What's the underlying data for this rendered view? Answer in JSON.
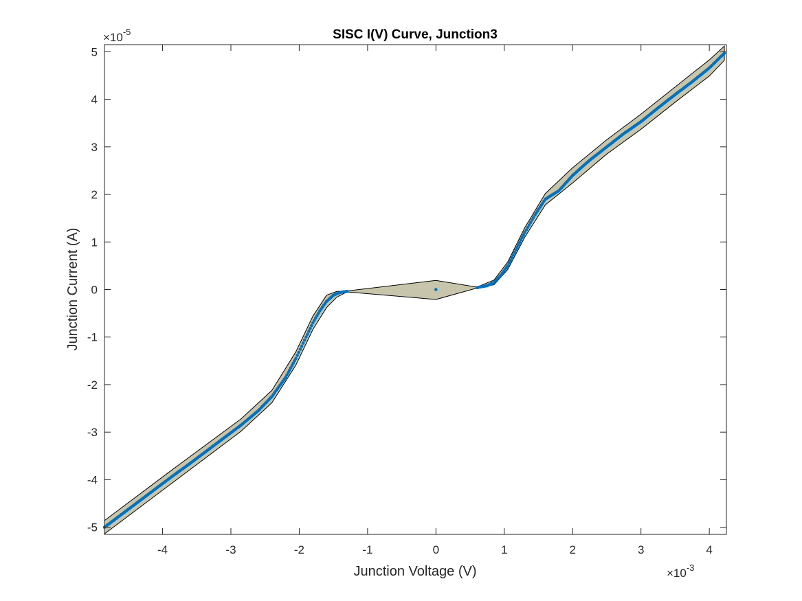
{
  "chart_data": {
    "type": "scatter",
    "title": "SISC I(V) Curve, Junction3",
    "xlabel": "Junction Voltage (V)",
    "ylabel": "Junction Current (A)",
    "x_multiplier": "×10",
    "x_exponent": "-3",
    "y_multiplier": "×10",
    "y_exponent": "-5",
    "xlim": [
      -4.85,
      4.25
    ],
    "ylim": [
      -5.15,
      5.15
    ],
    "xticks": [
      -4,
      -3,
      -2,
      -1,
      0,
      1,
      2,
      3,
      4
    ],
    "xtick_labels": [
      "-4",
      "-3",
      "-2",
      "-1",
      "0",
      "1",
      "2",
      "3",
      "4"
    ],
    "yticks": [
      -5,
      -4,
      -3,
      -2,
      -1,
      0,
      1,
      2,
      3,
      4,
      5
    ],
    "ytick_labels": [
      "-5",
      "-4",
      "-3",
      "-2",
      "-1",
      "0",
      "1",
      "2",
      "3",
      "4",
      "5"
    ],
    "grid": false,
    "colors": {
      "points": "#0072bd",
      "band_fill": "#c8c5ad",
      "band_stroke": "#000000",
      "axes": "#262626"
    },
    "series": [
      {
        "x": [
          -4.85,
          -4.6,
          -4.35,
          -4.1,
          -3.85,
          -3.6,
          -3.35,
          -3.1,
          -2.85,
          -2.6,
          -2.4,
          -2.2,
          -2.05,
          -1.9,
          -1.8,
          -1.7,
          -1.6,
          -1.5,
          -1.4,
          -1.3,
          0,
          0.6,
          0.75,
          0.85,
          0.95,
          1.05,
          1.15,
          1.3,
          1.45,
          1.6,
          1.8,
          2.0,
          2.25,
          2.5,
          2.75,
          3.0,
          3.25,
          3.5,
          3.75,
          4.0,
          4.22
        ],
        "y": [
          -5.0,
          -4.73,
          -4.46,
          -4.19,
          -3.92,
          -3.66,
          -3.39,
          -3.12,
          -2.85,
          -2.55,
          -2.25,
          -1.85,
          -1.45,
          -1.0,
          -0.7,
          -0.45,
          -0.25,
          -0.12,
          -0.06,
          -0.04,
          0.0,
          0.04,
          0.08,
          0.15,
          0.3,
          0.5,
          0.78,
          1.2,
          1.57,
          1.9,
          2.08,
          2.4,
          2.72,
          3.0,
          3.28,
          3.53,
          3.82,
          4.1,
          4.37,
          4.66,
          4.97
        ]
      }
    ],
    "band_upper": {
      "x": [
        -4.85,
        -3.85,
        -2.85,
        -2.4,
        -2.05,
        -1.8,
        -1.6,
        -1.45,
        -1.3,
        0,
        0.6,
        0.85,
        1.05,
        1.3,
        1.6,
        2.0,
        2.5,
        3.0,
        3.5,
        4.0,
        4.22
      ],
      "y": [
        -4.86,
        -3.78,
        -2.72,
        -2.12,
        -1.31,
        -0.56,
        -0.12,
        -0.04,
        -0.03,
        0.19,
        0.05,
        0.2,
        0.58,
        1.3,
        2.02,
        2.56,
        3.15,
        3.69,
        4.26,
        4.83,
        5.12
      ]
    },
    "band_lower": {
      "x": [
        -4.85,
        -3.85,
        -2.85,
        -2.4,
        -2.05,
        -1.8,
        -1.6,
        -1.45,
        -1.3,
        0,
        0.6,
        0.85,
        1.05,
        1.3,
        1.6,
        2.0,
        2.5,
        3.0,
        3.5,
        4.0,
        4.22
      ],
      "y": [
        -5.14,
        -4.06,
        -2.98,
        -2.38,
        -1.59,
        -0.84,
        -0.38,
        -0.16,
        -0.05,
        -0.21,
        0.03,
        0.1,
        0.42,
        1.1,
        1.78,
        2.24,
        2.85,
        3.37,
        3.94,
        4.49,
        4.82
      ]
    }
  }
}
